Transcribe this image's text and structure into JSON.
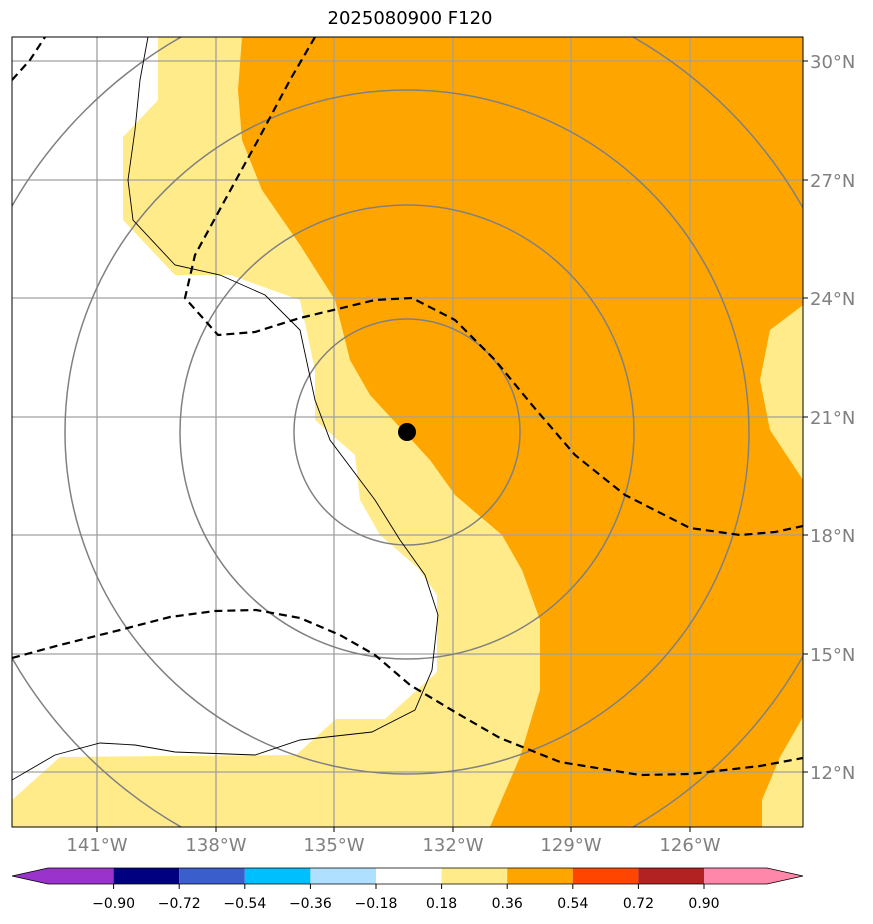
{
  "title": "2025080900 F120",
  "map": {
    "lon_range": [
      -143.2,
      -123.2
    ],
    "lat_range": [
      10.7,
      30.6
    ],
    "lat_ticks": [
      "30°N",
      "27°N",
      "24°N",
      "21°N",
      "18°N",
      "15°N",
      "12°N"
    ],
    "lon_ticks": [
      "141°W",
      "138°W",
      "135°W",
      "132°W",
      "129°W",
      "126°W"
    ],
    "center_marker": {
      "lon": -133.4,
      "lat": 20.6
    },
    "colors": {
      "yellow_fill": "#ffeb8a",
      "orange_fill": "#ffa500",
      "gridline": "#a0a0a0",
      "circle": "#808080",
      "dashed": "#000000"
    }
  },
  "colorbar": {
    "labels": [
      "−0.90",
      "−0.72",
      "−0.54",
      "−0.36",
      "−0.18",
      "0.18",
      "0.36",
      "0.54",
      "0.72",
      "0.90"
    ],
    "colors": [
      "#9933cc",
      "#000080",
      "#3a5fcd",
      "#00bfff",
      "#b0e0ff",
      "#ffffff",
      "#ffeb8a",
      "#ffa500",
      "#ff4500",
      "#b22222",
      "#ff88aa"
    ]
  }
}
